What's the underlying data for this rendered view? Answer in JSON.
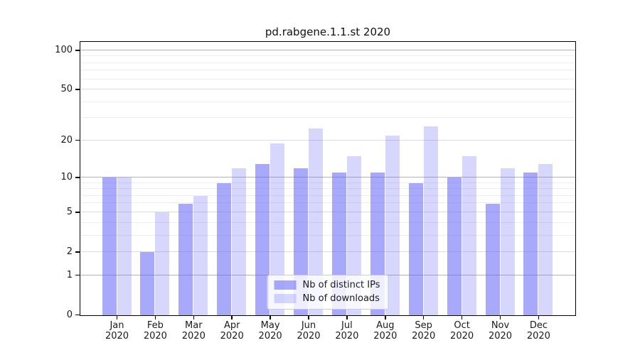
{
  "chart_data": {
    "type": "bar",
    "title": "pd.rabgene.1.1.st 2020",
    "categories": [
      "Jan",
      "Feb",
      "Mar",
      "Apr",
      "May",
      "Jun",
      "Jul",
      "Aug",
      "Sep",
      "Oct",
      "Nov",
      "Dec"
    ],
    "category_year": "2020",
    "series": [
      {
        "name": "Nb of distinct IPs",
        "color": "rgba(99,99,247,0.55)",
        "values": [
          10,
          2,
          6,
          9,
          13,
          12,
          11,
          11,
          9,
          10,
          6,
          11
        ]
      },
      {
        "name": "Nb of downloads",
        "color": "rgba(99,99,247,0.26)",
        "values": [
          10,
          5,
          7,
          12,
          19,
          25,
          15,
          22,
          26,
          15,
          12,
          13
        ]
      }
    ],
    "xlabel": "",
    "ylabel": "",
    "yscale": "log1p",
    "ylim": [
      0,
      115
    ],
    "yticks": [
      0,
      1,
      2,
      5,
      10,
      20,
      50,
      100
    ],
    "decade_ticks": [
      1,
      10,
      100
    ],
    "minor_gridlines": [
      3,
      4,
      6,
      7,
      8,
      9,
      30,
      40,
      60,
      70,
      80,
      90
    ],
    "grid": true,
    "legend_position": "lower center",
    "colors": {
      "spine": "#000000",
      "grid_decade": "#b4b4b4",
      "grid_labeled": "#dcdcdc",
      "grid_minor": "#eeeeee"
    }
  }
}
